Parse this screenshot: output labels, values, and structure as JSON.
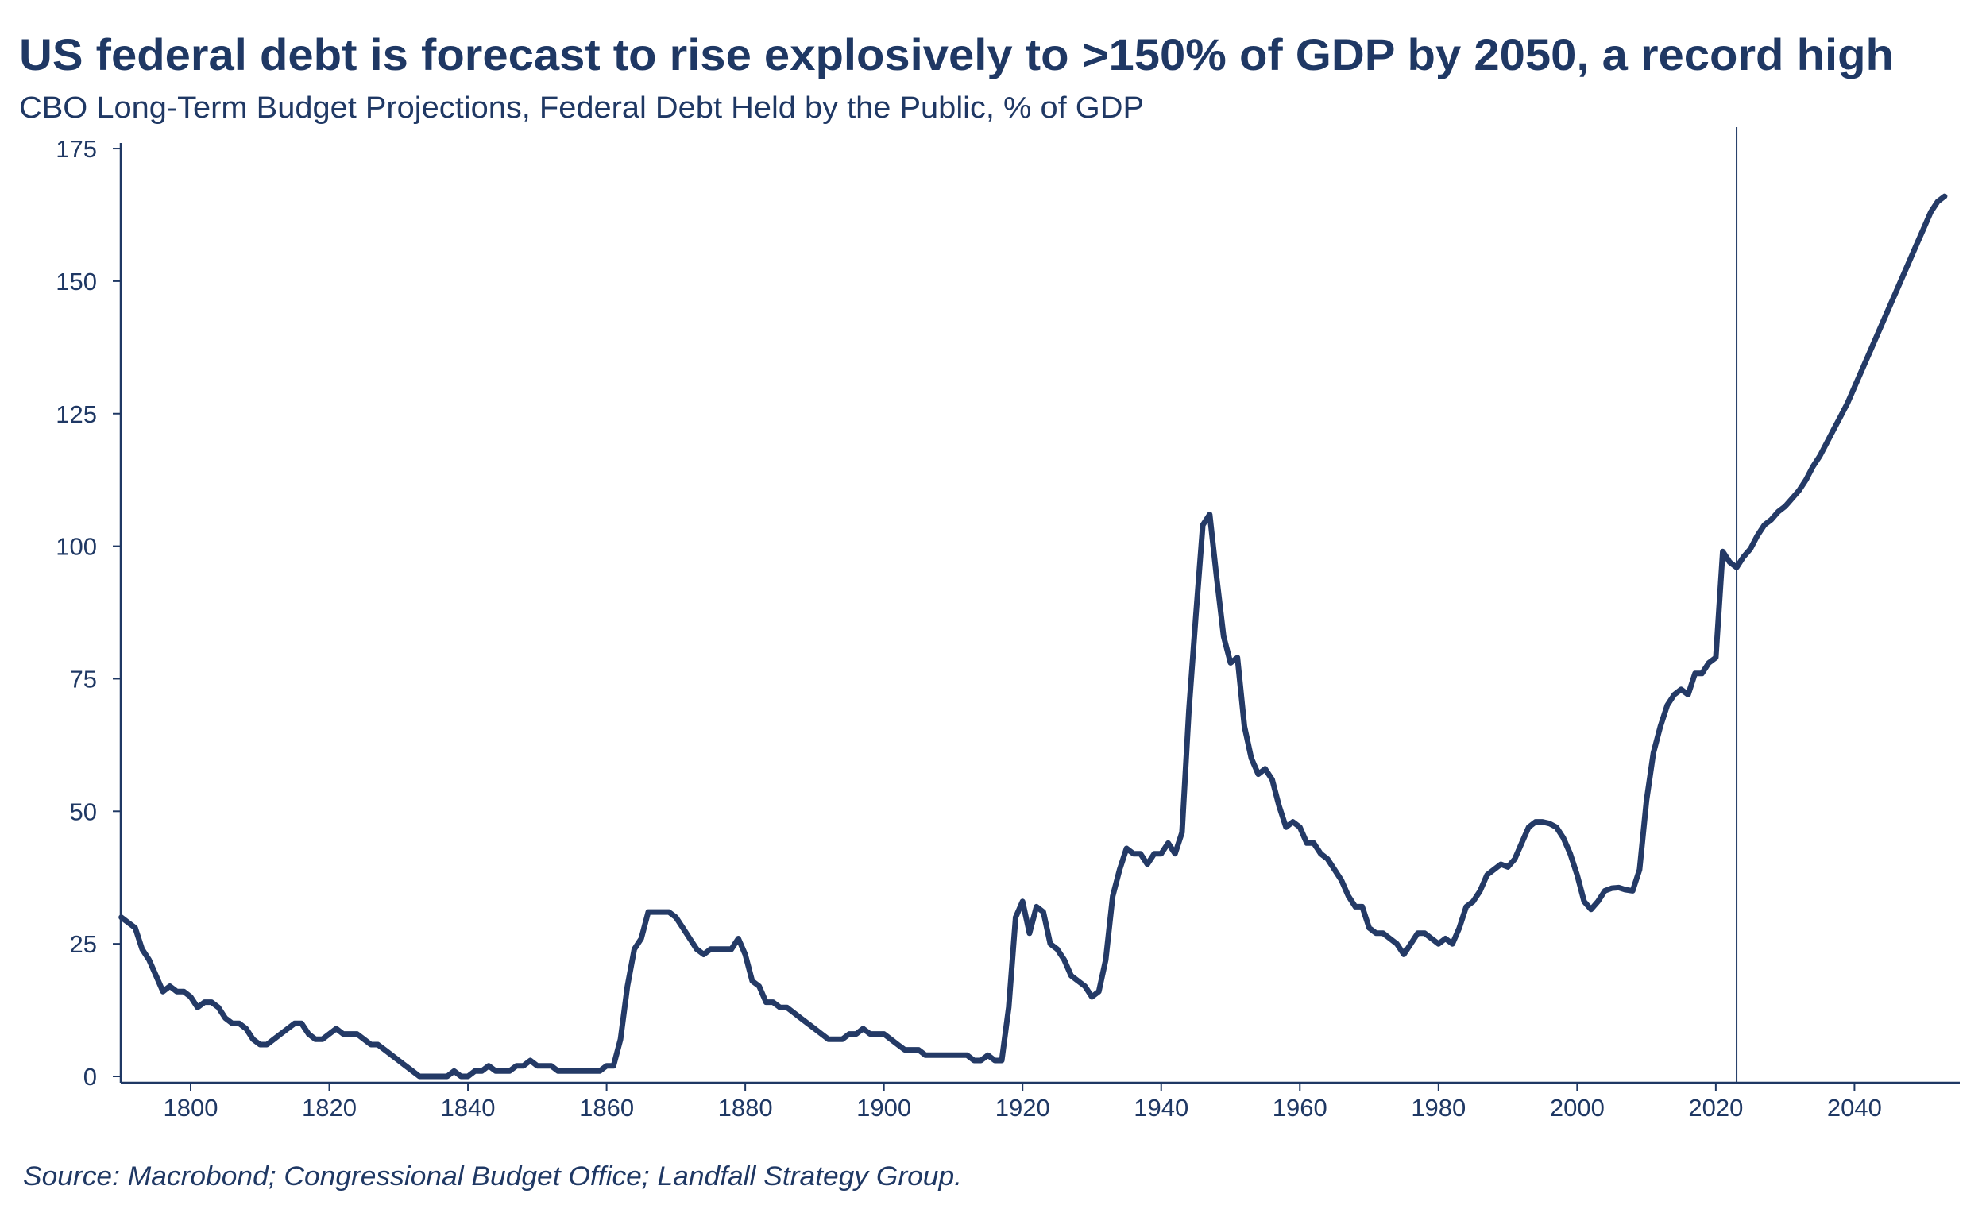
{
  "chart_data": {
    "type": "line",
    "title": "US federal debt is forecast to rise explosively to >150% of GDP by 2050, a record high",
    "subtitle": "CBO Long-Term Budget Projections, Federal Debt Held by the Public, % of GDP",
    "source": "Source: Macrobond; Congressional Budget Office; Landfall Strategy Group.",
    "xlabel": "",
    "ylabel": "",
    "xlim": [
      1790,
      2055
    ],
    "ylim": [
      0,
      175
    ],
    "x_ticks": [
      "1800",
      "1820",
      "1840",
      "1860",
      "1880",
      "1900",
      "1920",
      "1940",
      "1960",
      "1980",
      "2000",
      "2020",
      "2040"
    ],
    "y_ticks": [
      "0",
      "25",
      "50",
      "75",
      "100",
      "125",
      "150",
      "175"
    ],
    "grid": false,
    "legend": "none",
    "line_color": "#243a66",
    "vertical_marker_year": 2023,
    "series": [
      {
        "points": [
          [
            1790,
            30
          ],
          [
            1791,
            29
          ],
          [
            1792,
            28
          ],
          [
            1793,
            24
          ],
          [
            1794,
            22
          ],
          [
            1795,
            19
          ],
          [
            1796,
            16
          ],
          [
            1797,
            17
          ],
          [
            1798,
            16
          ],
          [
            1799,
            16
          ],
          [
            1800,
            15
          ],
          [
            1801,
            13
          ],
          [
            1802,
            14
          ],
          [
            1803,
            14
          ],
          [
            1804,
            13
          ],
          [
            1805,
            11
          ],
          [
            1806,
            10
          ],
          [
            1807,
            10
          ],
          [
            1808,
            9
          ],
          [
            1809,
            7
          ],
          [
            1810,
            6
          ],
          [
            1811,
            6
          ],
          [
            1812,
            7
          ],
          [
            1813,
            8
          ],
          [
            1814,
            9
          ],
          [
            1815,
            10
          ],
          [
            1816,
            10
          ],
          [
            1817,
            8
          ],
          [
            1818,
            7
          ],
          [
            1819,
            7
          ],
          [
            1820,
            8
          ],
          [
            1821,
            9
          ],
          [
            1822,
            8
          ],
          [
            1823,
            8
          ],
          [
            1824,
            8
          ],
          [
            1825,
            7
          ],
          [
            1826,
            6
          ],
          [
            1827,
            6
          ],
          [
            1828,
            5
          ],
          [
            1829,
            4
          ],
          [
            1830,
            3
          ],
          [
            1831,
            2
          ],
          [
            1832,
            1
          ],
          [
            1833,
            0
          ],
          [
            1834,
            0
          ],
          [
            1835,
            0
          ],
          [
            1836,
            0
          ],
          [
            1837,
            0
          ],
          [
            1838,
            1
          ],
          [
            1839,
            0
          ],
          [
            1840,
            0
          ],
          [
            1841,
            1
          ],
          [
            1842,
            1
          ],
          [
            1843,
            2
          ],
          [
            1844,
            1
          ],
          [
            1845,
            1
          ],
          [
            1846,
            1
          ],
          [
            1847,
            2
          ],
          [
            1848,
            2
          ],
          [
            1849,
            3
          ],
          [
            1850,
            2
          ],
          [
            1851,
            2
          ],
          [
            1852,
            2
          ],
          [
            1853,
            1
          ],
          [
            1854,
            1
          ],
          [
            1855,
            1
          ],
          [
            1856,
            1
          ],
          [
            1857,
            1
          ],
          [
            1858,
            1
          ],
          [
            1859,
            1
          ],
          [
            1860,
            2
          ],
          [
            1861,
            2
          ],
          [
            1862,
            7
          ],
          [
            1863,
            17
          ],
          [
            1864,
            24
          ],
          [
            1865,
            26
          ],
          [
            1866,
            31
          ],
          [
            1867,
            31
          ],
          [
            1868,
            31
          ],
          [
            1869,
            31
          ],
          [
            1870,
            30
          ],
          [
            1871,
            28
          ],
          [
            1872,
            26
          ],
          [
            1873,
            24
          ],
          [
            1874,
            23
          ],
          [
            1875,
            24
          ],
          [
            1876,
            24
          ],
          [
            1877,
            24
          ],
          [
            1878,
            24
          ],
          [
            1879,
            26
          ],
          [
            1880,
            23
          ],
          [
            1881,
            18
          ],
          [
            1882,
            17
          ],
          [
            1883,
            14
          ],
          [
            1884,
            14
          ],
          [
            1885,
            13
          ],
          [
            1886,
            13
          ],
          [
            1887,
            12
          ],
          [
            1888,
            11
          ],
          [
            1889,
            10
          ],
          [
            1890,
            9
          ],
          [
            1891,
            8
          ],
          [
            1892,
            7
          ],
          [
            1893,
            7
          ],
          [
            1894,
            7
          ],
          [
            1895,
            8
          ],
          [
            1896,
            8
          ],
          [
            1897,
            9
          ],
          [
            1898,
            8
          ],
          [
            1899,
            8
          ],
          [
            1900,
            8
          ],
          [
            1901,
            7
          ],
          [
            1902,
            6
          ],
          [
            1903,
            5
          ],
          [
            1904,
            5
          ],
          [
            1905,
            5
          ],
          [
            1906,
            4
          ],
          [
            1907,
            4
          ],
          [
            1908,
            4
          ],
          [
            1909,
            4
          ],
          [
            1910,
            4
          ],
          [
            1911,
            4
          ],
          [
            1912,
            4
          ],
          [
            1913,
            3
          ],
          [
            1914,
            3
          ],
          [
            1915,
            4
          ],
          [
            1916,
            3
          ],
          [
            1917,
            3
          ],
          [
            1918,
            13
          ],
          [
            1919,
            30
          ],
          [
            1920,
            33
          ],
          [
            1921,
            27
          ],
          [
            1922,
            32
          ],
          [
            1923,
            31
          ],
          [
            1924,
            25
          ],
          [
            1925,
            24
          ],
          [
            1926,
            22
          ],
          [
            1927,
            19
          ],
          [
            1928,
            18
          ],
          [
            1929,
            17
          ],
          [
            1930,
            15
          ],
          [
            1931,
            16
          ],
          [
            1932,
            22
          ],
          [
            1933,
            34
          ],
          [
            1934,
            39
          ],
          [
            1935,
            43
          ],
          [
            1936,
            42
          ],
          [
            1937,
            42
          ],
          [
            1938,
            40
          ],
          [
            1939,
            42
          ],
          [
            1940,
            42
          ],
          [
            1941,
            44
          ],
          [
            1942,
            42
          ],
          [
            1943,
            46
          ],
          [
            1944,
            69
          ],
          [
            1945,
            87
          ],
          [
            1946,
            104
          ],
          [
            1947,
            106
          ],
          [
            1948,
            94
          ],
          [
            1949,
            83
          ],
          [
            1950,
            78
          ],
          [
            1951,
            79
          ],
          [
            1952,
            66
          ],
          [
            1953,
            60
          ],
          [
            1954,
            57
          ],
          [
            1955,
            58
          ],
          [
            1956,
            56
          ],
          [
            1957,
            51
          ],
          [
            1958,
            47
          ],
          [
            1959,
            48
          ],
          [
            1960,
            47
          ],
          [
            1961,
            44
          ],
          [
            1962,
            44
          ],
          [
            1963,
            42
          ],
          [
            1964,
            41
          ],
          [
            1965,
            39
          ],
          [
            1966,
            37
          ],
          [
            1967,
            34
          ],
          [
            1968,
            32
          ],
          [
            1969,
            32
          ],
          [
            1970,
            28
          ],
          [
            1971,
            27
          ],
          [
            1972,
            27
          ],
          [
            1973,
            26
          ],
          [
            1974,
            25
          ],
          [
            1975,
            23
          ],
          [
            1976,
            25
          ],
          [
            1977,
            27
          ],
          [
            1978,
            27
          ],
          [
            1979,
            26
          ],
          [
            1980,
            25
          ],
          [
            1981,
            26
          ],
          [
            1982,
            25
          ],
          [
            1983,
            28
          ],
          [
            1984,
            32
          ],
          [
            1985,
            33
          ],
          [
            1986,
            35
          ],
          [
            1987,
            38
          ],
          [
            1988,
            39
          ],
          [
            1989,
            40
          ],
          [
            1990,
            39.5
          ],
          [
            1991,
            41
          ],
          [
            1992,
            44
          ],
          [
            1993,
            47
          ],
          [
            1994,
            48
          ],
          [
            1995,
            48
          ],
          [
            1996,
            47.7
          ],
          [
            1997,
            47
          ],
          [
            1998,
            45
          ],
          [
            1999,
            42
          ],
          [
            2000,
            38
          ],
          [
            2001,
            33
          ],
          [
            2002,
            31.5
          ],
          [
            2003,
            33
          ],
          [
            2004,
            35
          ],
          [
            2005,
            35.5
          ],
          [
            2006,
            35.6
          ],
          [
            2007,
            35.2
          ],
          [
            2008,
            35
          ],
          [
            2009,
            39
          ],
          [
            2010,
            52
          ],
          [
            2011,
            61
          ],
          [
            2012,
            66
          ],
          [
            2013,
            70
          ],
          [
            2014,
            72
          ],
          [
            2015,
            73
          ],
          [
            2016,
            72
          ],
          [
            2017,
            76
          ],
          [
            2018,
            76
          ],
          [
            2019,
            78
          ],
          [
            2020,
            79
          ],
          [
            2021,
            99
          ],
          [
            2022,
            97
          ],
          [
            2023,
            96
          ],
          [
            2024,
            98
          ],
          [
            2025,
            99.5
          ],
          [
            2026,
            102
          ],
          [
            2027,
            104
          ],
          [
            2028,
            105
          ],
          [
            2029,
            106.5
          ],
          [
            2030,
            107.5
          ],
          [
            2031,
            109
          ],
          [
            2032,
            110.5
          ],
          [
            2033,
            112.5
          ],
          [
            2034,
            115
          ],
          [
            2035,
            117
          ],
          [
            2036,
            119.5
          ],
          [
            2037,
            122
          ],
          [
            2038,
            124.5
          ],
          [
            2039,
            127
          ],
          [
            2040,
            130
          ],
          [
            2041,
            133
          ],
          [
            2042,
            136
          ],
          [
            2043,
            139
          ],
          [
            2044,
            142
          ],
          [
            2045,
            145
          ],
          [
            2046,
            148
          ],
          [
            2047,
            151
          ],
          [
            2048,
            154
          ],
          [
            2049,
            157
          ],
          [
            2050,
            160
          ],
          [
            2051,
            163
          ],
          [
            2052,
            165
          ],
          [
            2053,
            166
          ]
        ]
      }
    ]
  }
}
